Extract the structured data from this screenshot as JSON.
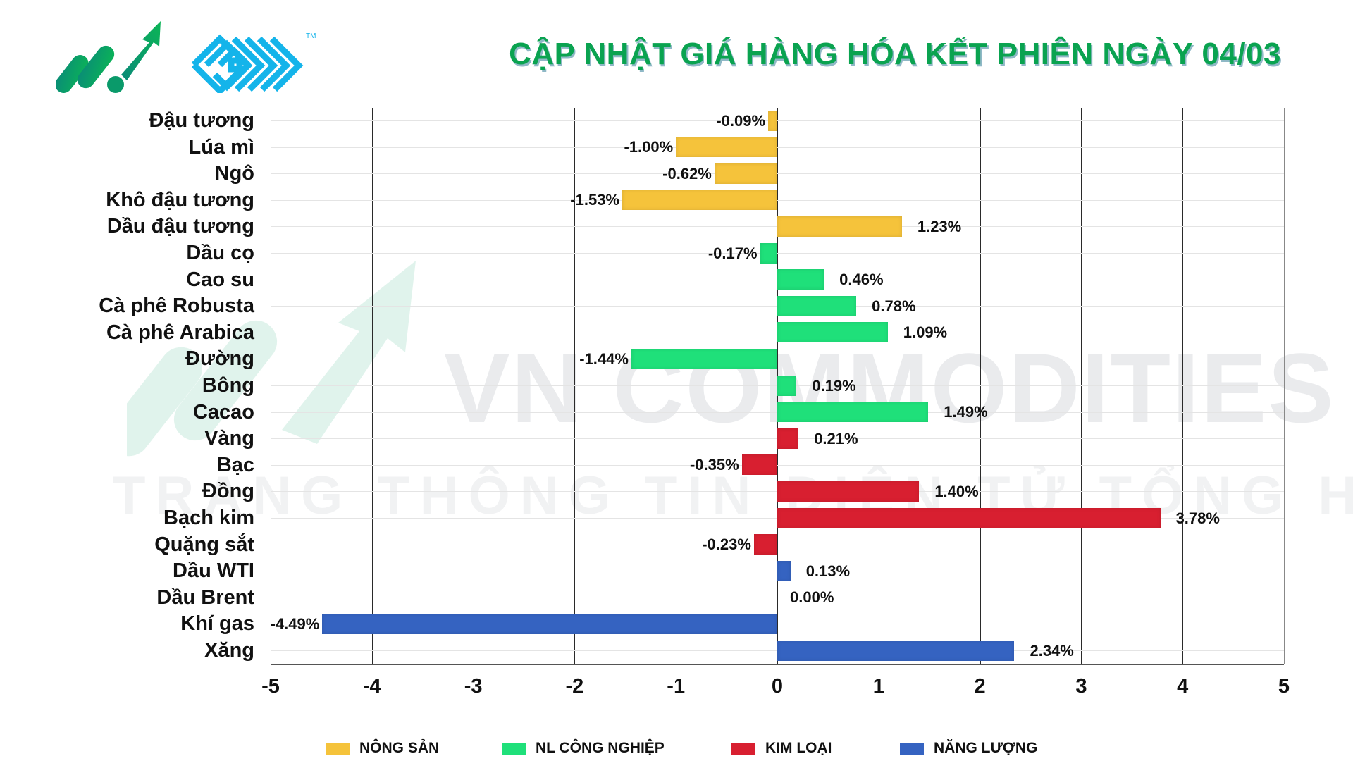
{
  "header": {
    "title": "CẬP NHẬT GIÁ HÀNG HÓA KẾT PHIÊN NGÀY 04/03",
    "logo_icon": "growth-arrow-logo",
    "brand_icon": "maze-logo",
    "trademark": "TM"
  },
  "watermark": {
    "line1": "VN COMMODITIES",
    "line2": "TRANG THÔNG TIN ĐIỆN TỬ TỔNG HỢP"
  },
  "colors": {
    "nong_san": "#f5c33b",
    "nl_cong_nghiep": "#1fe07a",
    "kim_loai": "#d81f30",
    "nang_luong": "#3563c1",
    "title_green": "#0aa350"
  },
  "legend": [
    {
      "label": "NÔNG SẢN",
      "color": "#f5c33b"
    },
    {
      "label": "NL CÔNG NGHIỆP",
      "color": "#1fe07a"
    },
    {
      "label": "KIM LOẠI",
      "color": "#d81f30"
    },
    {
      "label": "NĂNG LƯỢNG",
      "color": "#3563c1"
    }
  ],
  "axis": {
    "ticks": [
      "-5",
      "-4",
      "-3",
      "-2",
      "-1",
      "0",
      "1",
      "2",
      "3",
      "4",
      "5"
    ]
  },
  "chart_data": {
    "type": "bar",
    "orientation": "horizontal",
    "title": "CẬP NHẬT GIÁ HÀNG HÓA KẾT PHIÊN NGÀY 04/03",
    "xlabel": "",
    "ylabel": "",
    "xlim": [
      -5,
      5
    ],
    "grid": true,
    "legend_position": "bottom",
    "categories": [
      "Đậu tương",
      "Lúa mì",
      "Ngô",
      "Khô đậu tương",
      "Dầu đậu tương",
      "Dầu cọ",
      "Cao su",
      "Cà phê Robusta",
      "Cà phê Arabica",
      "Đường",
      "Bông",
      "Cacao",
      "Vàng",
      "Bạc",
      "Đồng",
      "Bạch kim",
      "Quặng sắt",
      "Dầu WTI",
      "Dầu Brent",
      "Khí gas",
      "Xăng"
    ],
    "values": [
      -0.09,
      -1.0,
      -0.62,
      -1.53,
      1.23,
      -0.17,
      0.46,
      0.78,
      1.09,
      -1.44,
      0.19,
      1.49,
      0.21,
      -0.35,
      1.4,
      3.78,
      -0.23,
      0.13,
      0.0,
      -4.49,
      2.34
    ],
    "labels": [
      "-0.09%",
      "-1.00%",
      "-0.62%",
      "-1.53%",
      "1.23%",
      "-0.17%",
      "0.46%",
      "0.78%",
      "1.09%",
      "-1.44%",
      "0.19%",
      "1.49%",
      "0.21%",
      "-0.35%",
      "1.40%",
      "3.78%",
      "-0.23%",
      "0.13%",
      "0.00%",
      "-4.49%",
      "2.34%"
    ],
    "groups": [
      "NÔNG SẢN",
      "NÔNG SẢN",
      "NÔNG SẢN",
      "NÔNG SẢN",
      "NÔNG SẢN",
      "NL CÔNG NGHIỆP",
      "NL CÔNG NGHIỆP",
      "NL CÔNG NGHIỆP",
      "NL CÔNG NGHIỆP",
      "NL CÔNG NGHIỆP",
      "NL CÔNG NGHIỆP",
      "NL CÔNG NGHIỆP",
      "KIM LOẠI",
      "KIM LOẠI",
      "KIM LOẠI",
      "KIM LOẠI",
      "KIM LOẠI",
      "NĂNG LƯỢNG",
      "NĂNG LƯỢNG",
      "NĂNG LƯỢNG",
      "NĂNG LƯỢNG"
    ],
    "series": [
      {
        "name": "NÔNG SẢN",
        "color": "#f5c33b",
        "categories": [
          "Đậu tương",
          "Lúa mì",
          "Ngô",
          "Khô đậu tương",
          "Dầu đậu tương"
        ],
        "values": [
          -0.09,
          -1.0,
          -0.62,
          -1.53,
          1.23
        ]
      },
      {
        "name": "NL CÔNG NGHIỆP",
        "color": "#1fe07a",
        "categories": [
          "Dầu cọ",
          "Cao su",
          "Cà phê Robusta",
          "Cà phê Arabica",
          "Đường",
          "Bông",
          "Cacao"
        ],
        "values": [
          -0.17,
          0.46,
          0.78,
          1.09,
          -1.44,
          0.19,
          1.49
        ]
      },
      {
        "name": "KIM LOẠI",
        "color": "#d81f30",
        "categories": [
          "Vàng",
          "Bạc",
          "Đồng",
          "Bạch kim",
          "Quặng sắt"
        ],
        "values": [
          0.21,
          -0.35,
          1.4,
          3.78,
          -0.23
        ]
      },
      {
        "name": "NĂNG LƯỢNG",
        "color": "#3563c1",
        "categories": [
          "Dầu WTI",
          "Dầu Brent",
          "Khí gas",
          "Xăng"
        ],
        "values": [
          0.13,
          0.0,
          -4.49,
          2.34
        ]
      }
    ]
  }
}
